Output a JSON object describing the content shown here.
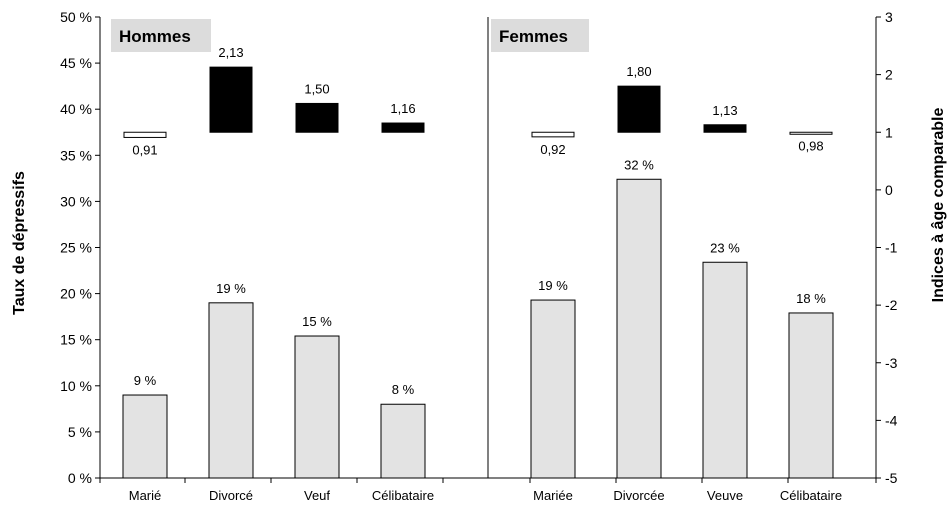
{
  "chart_data": {
    "type": "bar",
    "ylabel_left": "Taux de dépressifs",
    "ylabel_right": "Indices à âge comparable",
    "ylim_left": [
      0,
      50
    ],
    "yticks_left": [
      "0 %",
      "5 %",
      "10 %",
      "15 %",
      "20 %",
      "25 %",
      "30 %",
      "35 %",
      "40 %",
      "45 %",
      "50 %"
    ],
    "ylim_right": [
      -5,
      3
    ],
    "yticks_right": [
      "-5",
      "-4",
      "-3",
      "-2",
      "-1",
      "0",
      "1",
      "2",
      "3"
    ],
    "index_baseline": 1,
    "colors": {
      "rate_bar": "#e3e3e3",
      "index_above": "#000000",
      "index_below": "#ffffff",
      "panel_title_bg": "#dcdcdc"
    },
    "panels": [
      {
        "title": "Hommes",
        "categories": [
          "Marié",
          "Divorcé",
          "Veuf",
          "Célibataire"
        ],
        "rates": [
          9,
          19,
          15.4,
          8
        ],
        "rate_labels": [
          "9 %",
          "19 %",
          "15 %",
          "8 %"
        ],
        "indices": [
          0.91,
          2.13,
          1.5,
          1.16
        ],
        "index_labels": [
          "0,91",
          "2,13",
          "1,50",
          "1,16"
        ]
      },
      {
        "title": "Femmes",
        "categories": [
          "Mariée",
          "Divorcée",
          "Veuve",
          "Célibataire"
        ],
        "rates": [
          19.3,
          32.4,
          23.4,
          17.9
        ],
        "rate_labels": [
          "19 %",
          "32 %",
          "23 %",
          "18 %"
        ],
        "indices": [
          0.92,
          1.8,
          1.13,
          0.98
        ],
        "index_labels": [
          "0,92",
          "1,80",
          "1,13",
          "0,98"
        ]
      }
    ]
  }
}
